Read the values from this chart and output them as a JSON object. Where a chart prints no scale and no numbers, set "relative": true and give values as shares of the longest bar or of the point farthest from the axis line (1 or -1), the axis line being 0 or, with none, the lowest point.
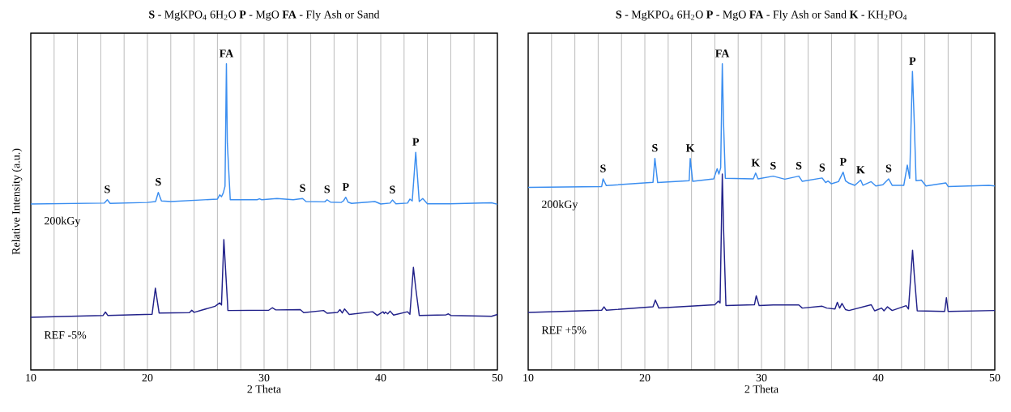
{
  "chart_data": [
    {
      "type": "line",
      "title": "**S** - MgKPO$_{4}$ 6H$_{2}$O   **P** - MgO   **FA** - Fly Ash or Sand",
      "xlabel": "2 Theta",
      "ylabel": "Relative Intensity (a.u.)",
      "relative": true,
      "tick_labels": "x",
      "grid": "x",
      "marker": "none",
      "xlim": [
        10,
        50
      ],
      "xticks": [
        10,
        {
          "value": 12,
          "label": null
        },
        {
          "value": 14,
          "label": null
        },
        {
          "value": 16,
          "label": null
        },
        {
          "value": 18,
          "label": null
        },
        20,
        {
          "value": 22,
          "label": null
        },
        {
          "value": 24,
          "label": null
        },
        {
          "value": 26,
          "label": null
        },
        {
          "value": 28,
          "label": null
        },
        30,
        {
          "value": 32,
          "label": null
        },
        {
          "value": 34,
          "label": null
        },
        {
          "value": 36,
          "label": null
        },
        {
          "value": 38,
          "label": null
        },
        40,
        {
          "value": 42,
          "label": null
        },
        {
          "value": 44,
          "label": null
        },
        {
          "value": 46,
          "label": null
        },
        {
          "value": 48,
          "label": null
        },
        50
      ],
      "series": [
        {
          "name": "200kGy",
          "color": "#3b8ef0",
          "x": [
            10,
            16.3,
            16.56,
            16.8,
            20,
            20.7,
            20.93,
            21.2,
            22,
            26.0,
            26.2,
            26.35,
            26.5,
            26.65,
            26.77,
            26.85,
            27.1,
            29.4,
            29.6,
            29.8,
            31.1,
            32.5,
            33.3,
            33.6,
            35.2,
            35.4,
            35.7,
            36.6,
            36.8,
            37.0,
            37.2,
            37.5,
            39.5,
            40.0,
            40.8,
            41.0,
            41.3,
            42.3,
            42.5,
            42.7,
            43.0,
            43.3,
            43.6,
            44.0,
            45.9,
            49.5,
            50
          ],
          "values": [
            0.542,
            0.545,
            0.556,
            0.544,
            0.547,
            0.55,
            0.58,
            0.552,
            0.55,
            0.558,
            0.572,
            0.566,
            0.578,
            0.6,
            1.0,
            0.74,
            0.556,
            0.556,
            0.559,
            0.556,
            0.56,
            0.556,
            0.56,
            0.55,
            0.549,
            0.556,
            0.548,
            0.547,
            0.552,
            0.564,
            0.548,
            0.544,
            0.55,
            0.542,
            0.545,
            0.555,
            0.543,
            0.545,
            0.558,
            0.552,
            0.711,
            0.55,
            0.56,
            0.543,
            0.543,
            0.546,
            0.541
          ]
        },
        {
          "name": "REF -5%",
          "color": "#22228a",
          "x": [
            10,
            16.2,
            16.4,
            16.6,
            20.4,
            20.68,
            21.0,
            23.6,
            23.8,
            24.0,
            25.8,
            26.2,
            26.35,
            26.55,
            26.9,
            30.4,
            30.7,
            31.0,
            33.1,
            33.4,
            35.1,
            35.4,
            36.3,
            36.5,
            36.7,
            36.9,
            37.3,
            39.3,
            39.7,
            40.2,
            40.3,
            40.4,
            40.6,
            40.8,
            41.1,
            42.3,
            42.5,
            42.8,
            43.0,
            43.3,
            45.6,
            45.8,
            46.0,
            49.5,
            50
          ],
          "values": [
            0.172,
            0.178,
            0.189,
            0.178,
            0.182,
            0.267,
            0.186,
            0.187,
            0.195,
            0.188,
            0.208,
            0.219,
            0.212,
            0.426,
            0.194,
            0.195,
            0.203,
            0.196,
            0.197,
            0.187,
            0.194,
            0.185,
            0.188,
            0.197,
            0.186,
            0.199,
            0.181,
            0.19,
            0.178,
            0.19,
            0.184,
            0.189,
            0.183,
            0.192,
            0.179,
            0.19,
            0.182,
            0.335,
            0.267,
            0.178,
            0.18,
            0.183,
            0.178,
            0.175,
            0.181
          ]
        }
      ],
      "annotations": [
        {
          "text": "S",
          "x": 16.56,
          "y": 0.556
        },
        {
          "text": "S",
          "x": 20.93,
          "y": 0.58
        },
        {
          "text": "FA",
          "x": 26.77,
          "y": 1.0
        },
        {
          "text": "S",
          "x": 33.3,
          "y": 0.56
        },
        {
          "text": "S",
          "x": 35.4,
          "y": 0.556
        },
        {
          "text": "P",
          "x": 37.0,
          "y": 0.564
        },
        {
          "text": "S",
          "x": 41.0,
          "y": 0.555
        },
        {
          "text": "P",
          "x": 43.0,
          "y": 0.711
        }
      ]
    },
    {
      "type": "line",
      "title": "**S** - MgKPO$_{4}$ 6H$_{2}$O   **P** - MgO   **FA** - Fly Ash or Sand   **K** - KH$_{2}$PO$_{4}$",
      "xlabel": "2 Theta",
      "relative": true,
      "tick_labels": "x",
      "grid": "x",
      "marker": "none",
      "xlim": [
        10,
        50
      ],
      "xticks": [
        10,
        {
          "value": 12,
          "label": null
        },
        {
          "value": 14,
          "label": null
        },
        {
          "value": 16,
          "label": null
        },
        {
          "value": 18,
          "label": null
        },
        20,
        {
          "value": 22,
          "label": null
        },
        {
          "value": 24,
          "label": null
        },
        {
          "value": 26,
          "label": null
        },
        {
          "value": 28,
          "label": null
        },
        30,
        {
          "value": 32,
          "label": null
        },
        {
          "value": 34,
          "label": null
        },
        {
          "value": 36,
          "label": null
        },
        {
          "value": 38,
          "label": null
        },
        40,
        {
          "value": 42,
          "label": null
        },
        {
          "value": 44,
          "label": null
        },
        {
          "value": 46,
          "label": null
        },
        {
          "value": 48,
          "label": null
        },
        50
      ],
      "series": [
        {
          "name": "200kGy",
          "color": "#3b8ef0",
          "x": [
            10,
            16.3,
            16.42,
            16.7,
            20.7,
            20.86,
            21.1,
            23.8,
            23.89,
            24.1,
            25.9,
            26.2,
            26.35,
            26.5,
            26.64,
            26.75,
            26.9,
            29.3,
            29.5,
            29.7,
            31.0,
            32.0,
            33.2,
            33.5,
            35.2,
            35.5,
            35.7,
            36.0,
            36.6,
            37.0,
            37.2,
            37.5,
            38.0,
            38.5,
            38.7,
            39.4,
            39.8,
            40.4,
            40.9,
            41.2,
            42.2,
            42.5,
            42.7,
            42.94,
            43.1,
            43.25,
            43.7,
            44.1,
            45.8,
            46.0,
            49.5,
            50
          ],
          "values": [
            0.596,
            0.599,
            0.624,
            0.602,
            0.613,
            0.691,
            0.612,
            0.618,
            0.691,
            0.616,
            0.624,
            0.657,
            0.64,
            0.66,
            1.0,
            0.803,
            0.626,
            0.624,
            0.643,
            0.624,
            0.633,
            0.623,
            0.633,
            0.616,
            0.627,
            0.612,
            0.617,
            0.608,
            0.615,
            0.646,
            0.618,
            0.61,
            0.603,
            0.62,
            0.603,
            0.615,
            0.601,
            0.605,
            0.624,
            0.603,
            0.603,
            0.669,
            0.626,
            0.975,
            0.803,
            0.618,
            0.62,
            0.601,
            0.611,
            0.599,
            0.603,
            0.601
          ]
        },
        {
          "name": "REF +5%",
          "color": "#22228a",
          "x": [
            10,
            16.3,
            16.5,
            16.7,
            20.7,
            20.9,
            21.2,
            26.0,
            26.3,
            26.45,
            26.64,
            26.75,
            26.95,
            29.4,
            29.55,
            29.8,
            31.0,
            33.2,
            33.5,
            35.2,
            35.6,
            36.3,
            36.5,
            36.7,
            36.9,
            37.2,
            37.5,
            39.4,
            39.7,
            40.3,
            40.5,
            40.8,
            41.2,
            42.4,
            42.6,
            42.95,
            43.1,
            43.35,
            45.7,
            45.85,
            46.0,
            50
          ],
          "values": [
            0.188,
            0.195,
            0.206,
            0.195,
            0.206,
            0.228,
            0.202,
            0.213,
            0.225,
            0.219,
            0.64,
            0.461,
            0.21,
            0.213,
            0.242,
            0.21,
            0.212,
            0.212,
            0.202,
            0.208,
            0.202,
            0.199,
            0.221,
            0.202,
            0.217,
            0.197,
            0.194,
            0.213,
            0.193,
            0.202,
            0.193,
            0.206,
            0.194,
            0.21,
            0.199,
            0.391,
            0.309,
            0.193,
            0.191,
            0.236,
            0.191,
            0.194
          ]
        }
      ],
      "annotations": [
        {
          "text": "S",
          "x": 16.42,
          "y": 0.624
        },
        {
          "text": "S",
          "x": 20.86,
          "y": 0.691
        },
        {
          "text": "K",
          "x": 23.89,
          "y": 0.691
        },
        {
          "text": "FA",
          "x": 26.64,
          "y": 1.0
        },
        {
          "text": "K",
          "x": 29.5,
          "y": 0.643
        },
        {
          "text": "S",
          "x": 31.0,
          "y": 0.633
        },
        {
          "text": "S",
          "x": 33.2,
          "y": 0.633
        },
        {
          "text": "S",
          "x": 35.2,
          "y": 0.627
        },
        {
          "text": "P",
          "x": 37.0,
          "y": 0.646
        },
        {
          "text": "K",
          "x": 38.5,
          "y": 0.62
        },
        {
          "text": "S",
          "x": 40.9,
          "y": 0.624
        },
        {
          "text": "P",
          "x": 42.94,
          "y": 0.975
        }
      ]
    }
  ]
}
